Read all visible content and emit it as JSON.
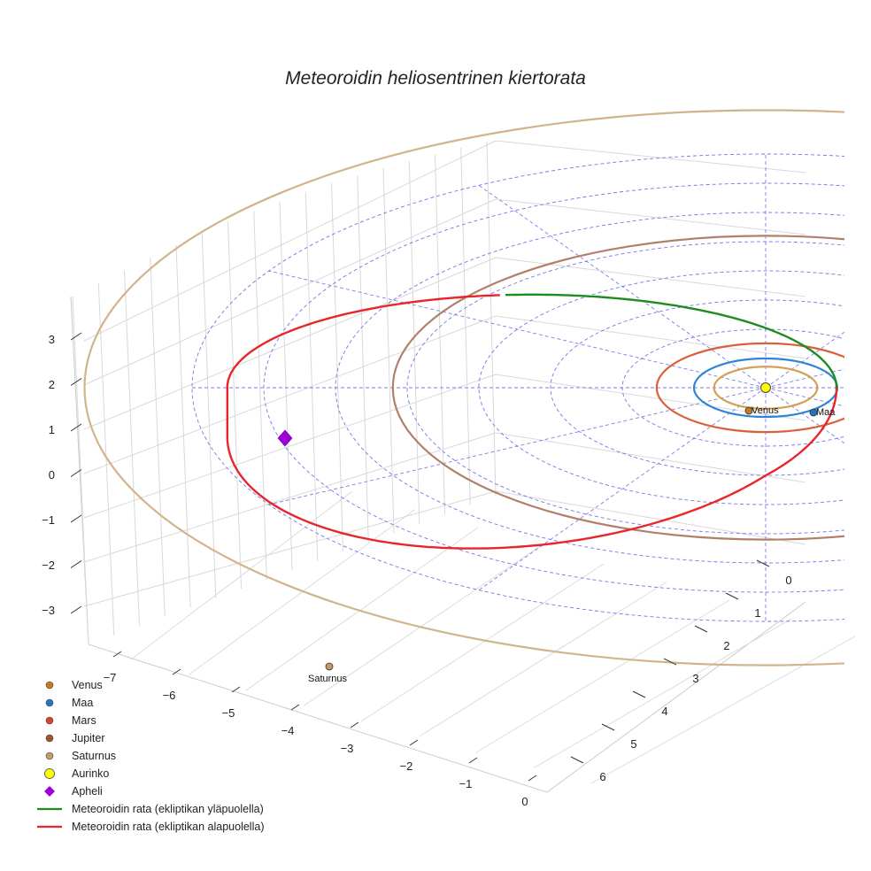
{
  "chart_data": {
    "type": "line",
    "projection": "3d",
    "title": "Meteoroidin heliosentrinen kiertorata",
    "xlabel": "",
    "ylabel": "",
    "zlabel": "",
    "x_ticks": [
      "−7",
      "−6",
      "−5",
      "−4",
      "−3",
      "−2",
      "−1",
      "0"
    ],
    "y_ticks": [
      "0",
      "1",
      "2",
      "3",
      "4",
      "5",
      "6"
    ],
    "z_ticks": [
      "3",
      "2",
      "1",
      "0",
      "−1",
      "−2",
      "−3"
    ],
    "xlim": [
      -7.5,
      0
    ],
    "ylim": [
      -1.5,
      7
    ],
    "zlim": [
      -3.5,
      3.5
    ],
    "grid": true,
    "planets": [
      {
        "name": "Venus",
        "color": "#c87822",
        "orbit_color": "#d4a056",
        "a_au": 0.72,
        "position": {
          "x": -0.2,
          "y": 0.65,
          "z": 0
        },
        "label": "Venus"
      },
      {
        "name": "Maa",
        "color": "#1f77c4",
        "orbit_color": "#2f84d6",
        "a_au": 1.0,
        "position": {
          "x": 1.0,
          "y": 0.25,
          "z": 0
        },
        "label": "Maa"
      },
      {
        "name": "Mars",
        "color": "#d2452a",
        "orbit_color": "#d9603a",
        "a_au": 1.52,
        "position": null,
        "label": ""
      },
      {
        "name": "Jupiter",
        "color": "#a0522d",
        "orbit_color": "#b0806a",
        "a_au": 5.2,
        "position": null,
        "label": ""
      },
      {
        "name": "Saturnus",
        "color": "#c49a6c",
        "orbit_color": "#d2b48c",
        "a_au": 9.5,
        "position": {
          "x": -6.3,
          "y": 6.6,
          "z": 0
        },
        "label": "Saturnus"
      }
    ],
    "sun": {
      "name": "Aurinko",
      "color": "#ffff00",
      "position": {
        "x": 0,
        "y": 0,
        "z": 0
      }
    },
    "aphelion": {
      "name": "Apheli",
      "color": "#9b00d9",
      "position": {
        "x": -7.5,
        "y": 1.5,
        "z": -1.0
      }
    },
    "meteoroid_orbit": {
      "perihelion_au": 1.0,
      "aphelion_au": 7.6,
      "segments": [
        {
          "name": "Meteoroidin rata (ekliptikan yläpuolella)",
          "color": "#1e8c1e"
        },
        {
          "name": "Meteoroidin rata (ekliptikan alapuolella)",
          "color": "#e8262a"
        }
      ]
    },
    "ecliptic_grid": {
      "color": "#6666e6",
      "style": "dashed",
      "rings_au": [
        1,
        2,
        3,
        4,
        5,
        6,
        7,
        8
      ],
      "spokes": 12
    },
    "legend": {
      "placement": "bottom-left",
      "entries": [
        {
          "label": "Venus",
          "marker": "circle",
          "color": "#c87822"
        },
        {
          "label": "Maa",
          "marker": "circle",
          "color": "#1f77c4"
        },
        {
          "label": "Mars",
          "marker": "circle",
          "color": "#d2452a"
        },
        {
          "label": "Jupiter",
          "marker": "circle",
          "color": "#a0522d"
        },
        {
          "label": "Saturnus",
          "marker": "circle",
          "color": "#c49a6c"
        },
        {
          "label": "Aurinko",
          "marker": "circle-large",
          "color": "#ffff00"
        },
        {
          "label": "Apheli",
          "marker": "diamond",
          "color": "#9b00d9"
        },
        {
          "label": "Meteoroidin rata (ekliptikan yläpuolella)",
          "marker": "line",
          "color": "#1e8c1e"
        },
        {
          "label": "Meteoroidin rata (ekliptikan alapuolella)",
          "marker": "line",
          "color": "#e8262a"
        }
      ]
    }
  }
}
